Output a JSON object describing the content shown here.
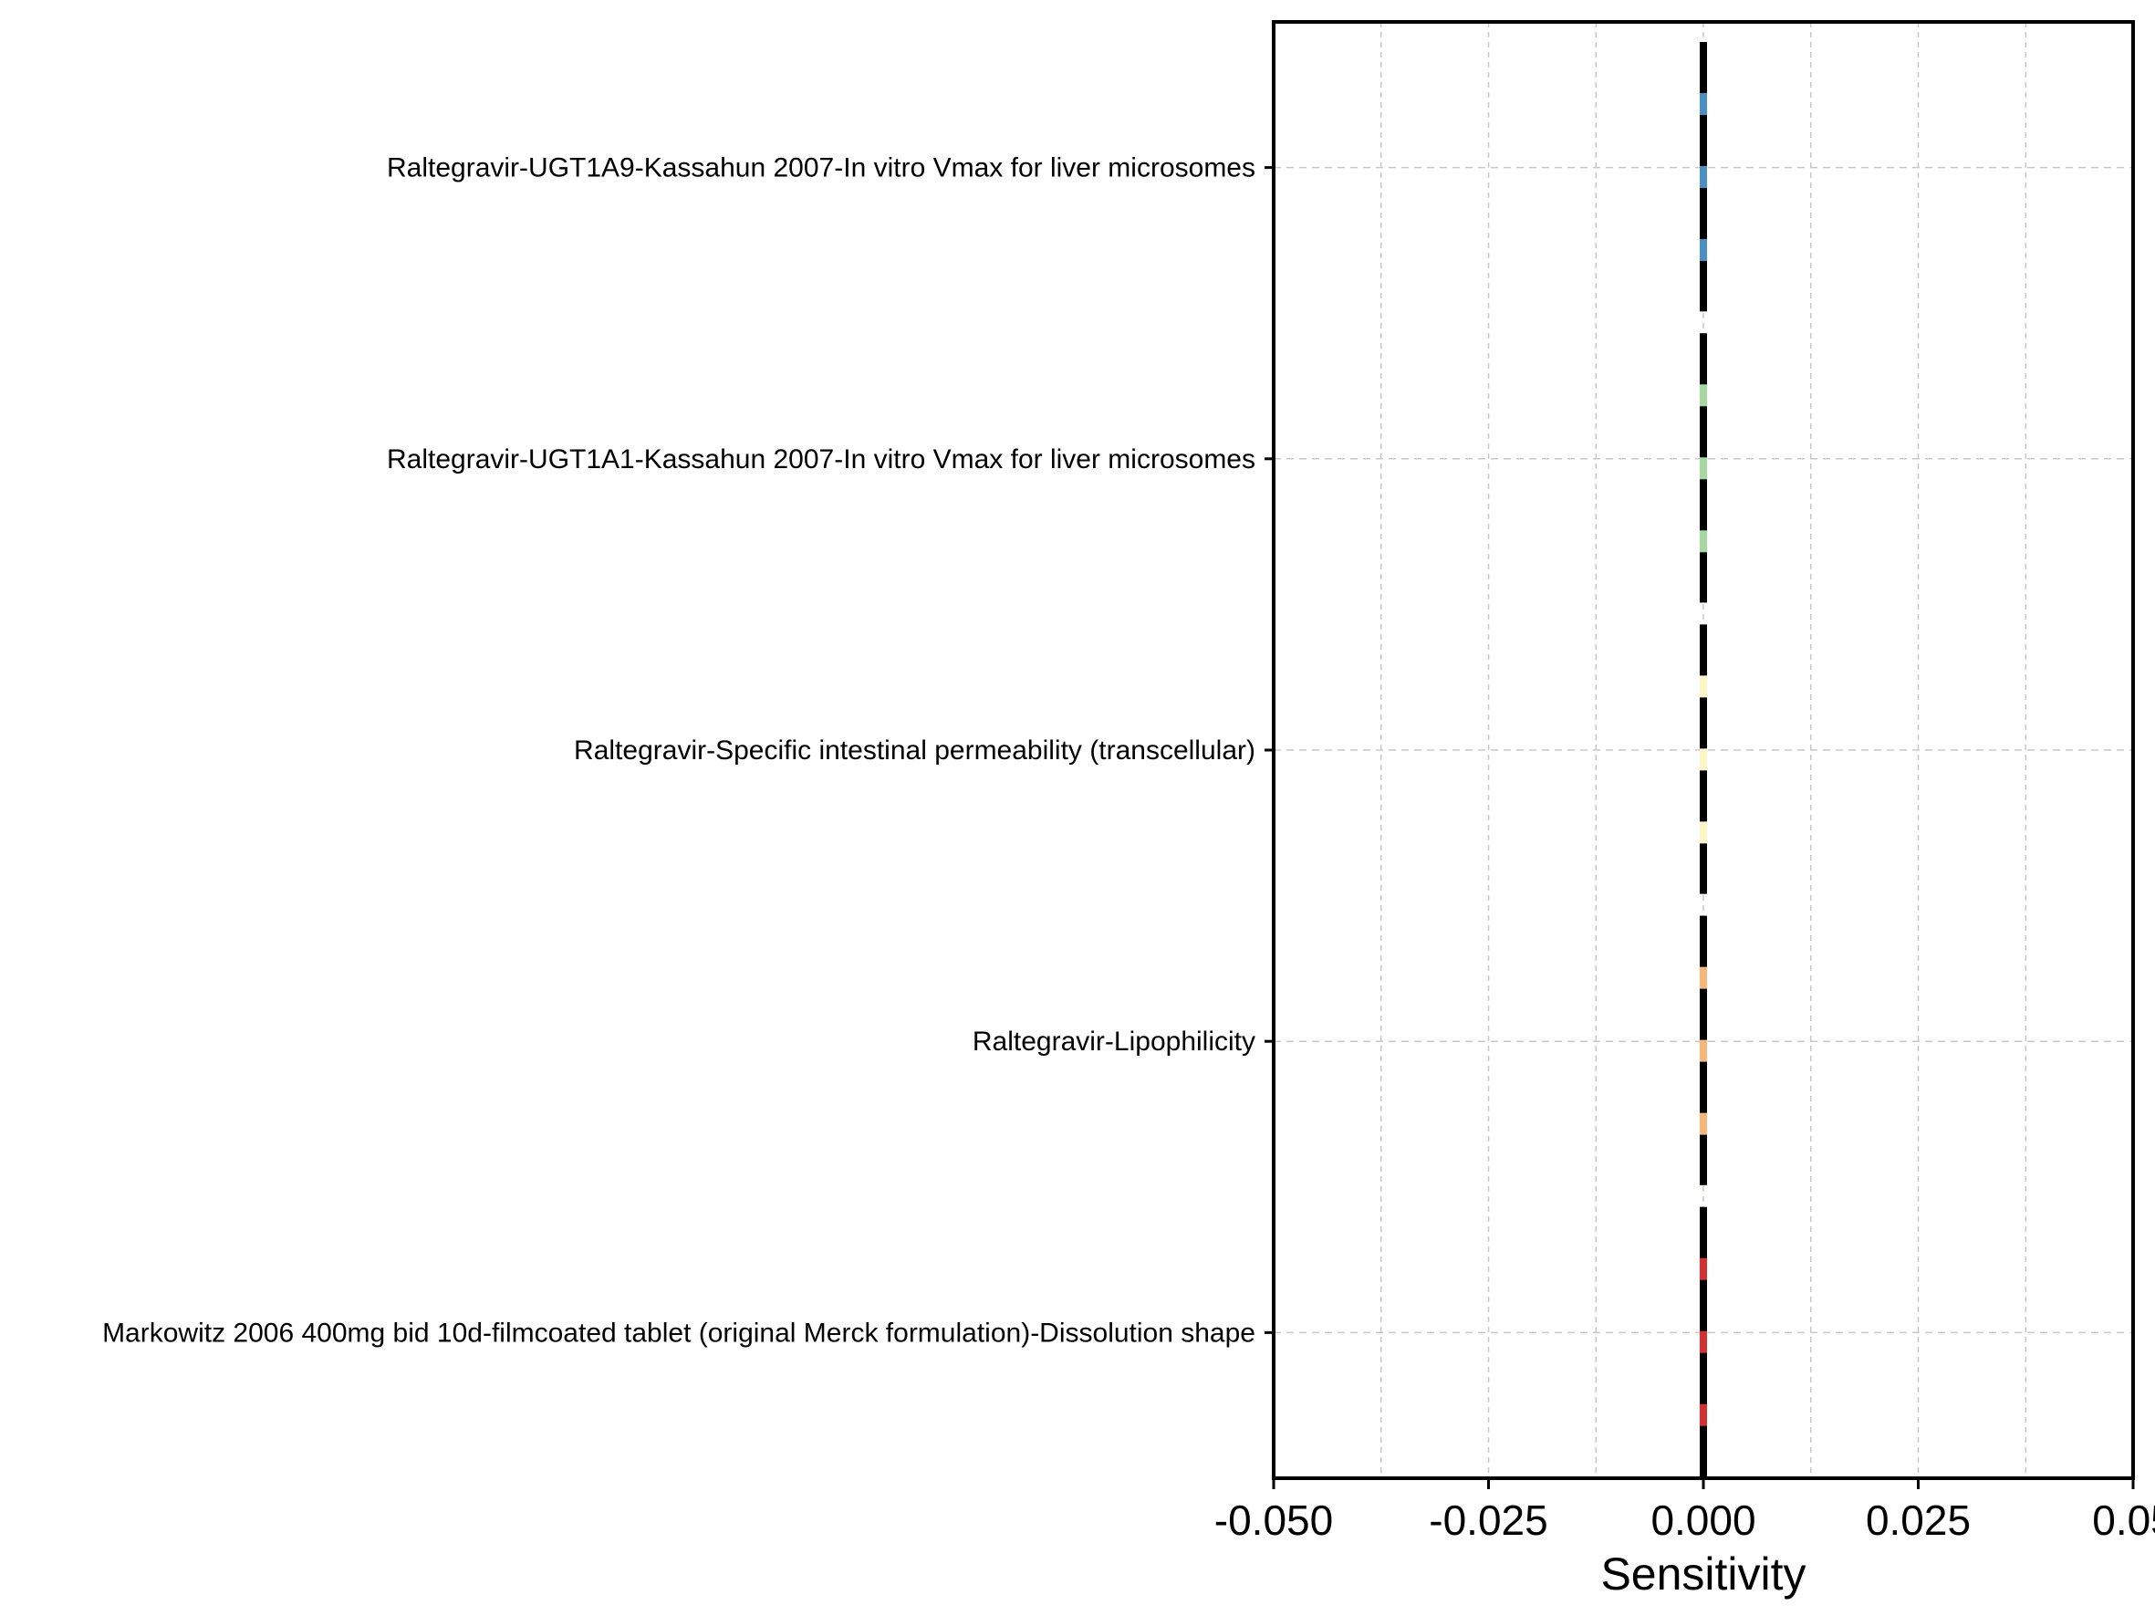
{
  "chart_data": {
    "type": "bar",
    "orientation": "horizontal",
    "title": "",
    "xlabel": "Sensitivity",
    "ylabel": "",
    "xlim": [
      -0.05,
      0.05
    ],
    "x_tick_values": [
      -0.05,
      -0.025,
      0,
      0.025,
      0.05
    ],
    "x_tick_labels": [
      "-0.050",
      "-0.025",
      "0.000",
      "0.025",
      "0.05"
    ],
    "grid": true,
    "legend": "none",
    "categories": [
      "Raltegravir-UGT1A9-Kassahun 2007-In vitro Vmax for liver microsomes",
      "Raltegravir-UGT1A1-Kassahun 2007-In vitro Vmax for liver microsomes",
      "Raltegravir-Specific intestinal permeability (transcellular)",
      "Raltegravir-Lipophilicity",
      "Markowitz 2006 400mg bid 10d-filmcoated tablet (original Merck formulation)-Dissolution shape"
    ],
    "values": [
      0,
      0,
      0,
      0,
      0
    ],
    "colors": [
      "#4a90c4",
      "#a6d99f",
      "#fdf6c4",
      "#f7b77a",
      "#d62f2f"
    ]
  }
}
